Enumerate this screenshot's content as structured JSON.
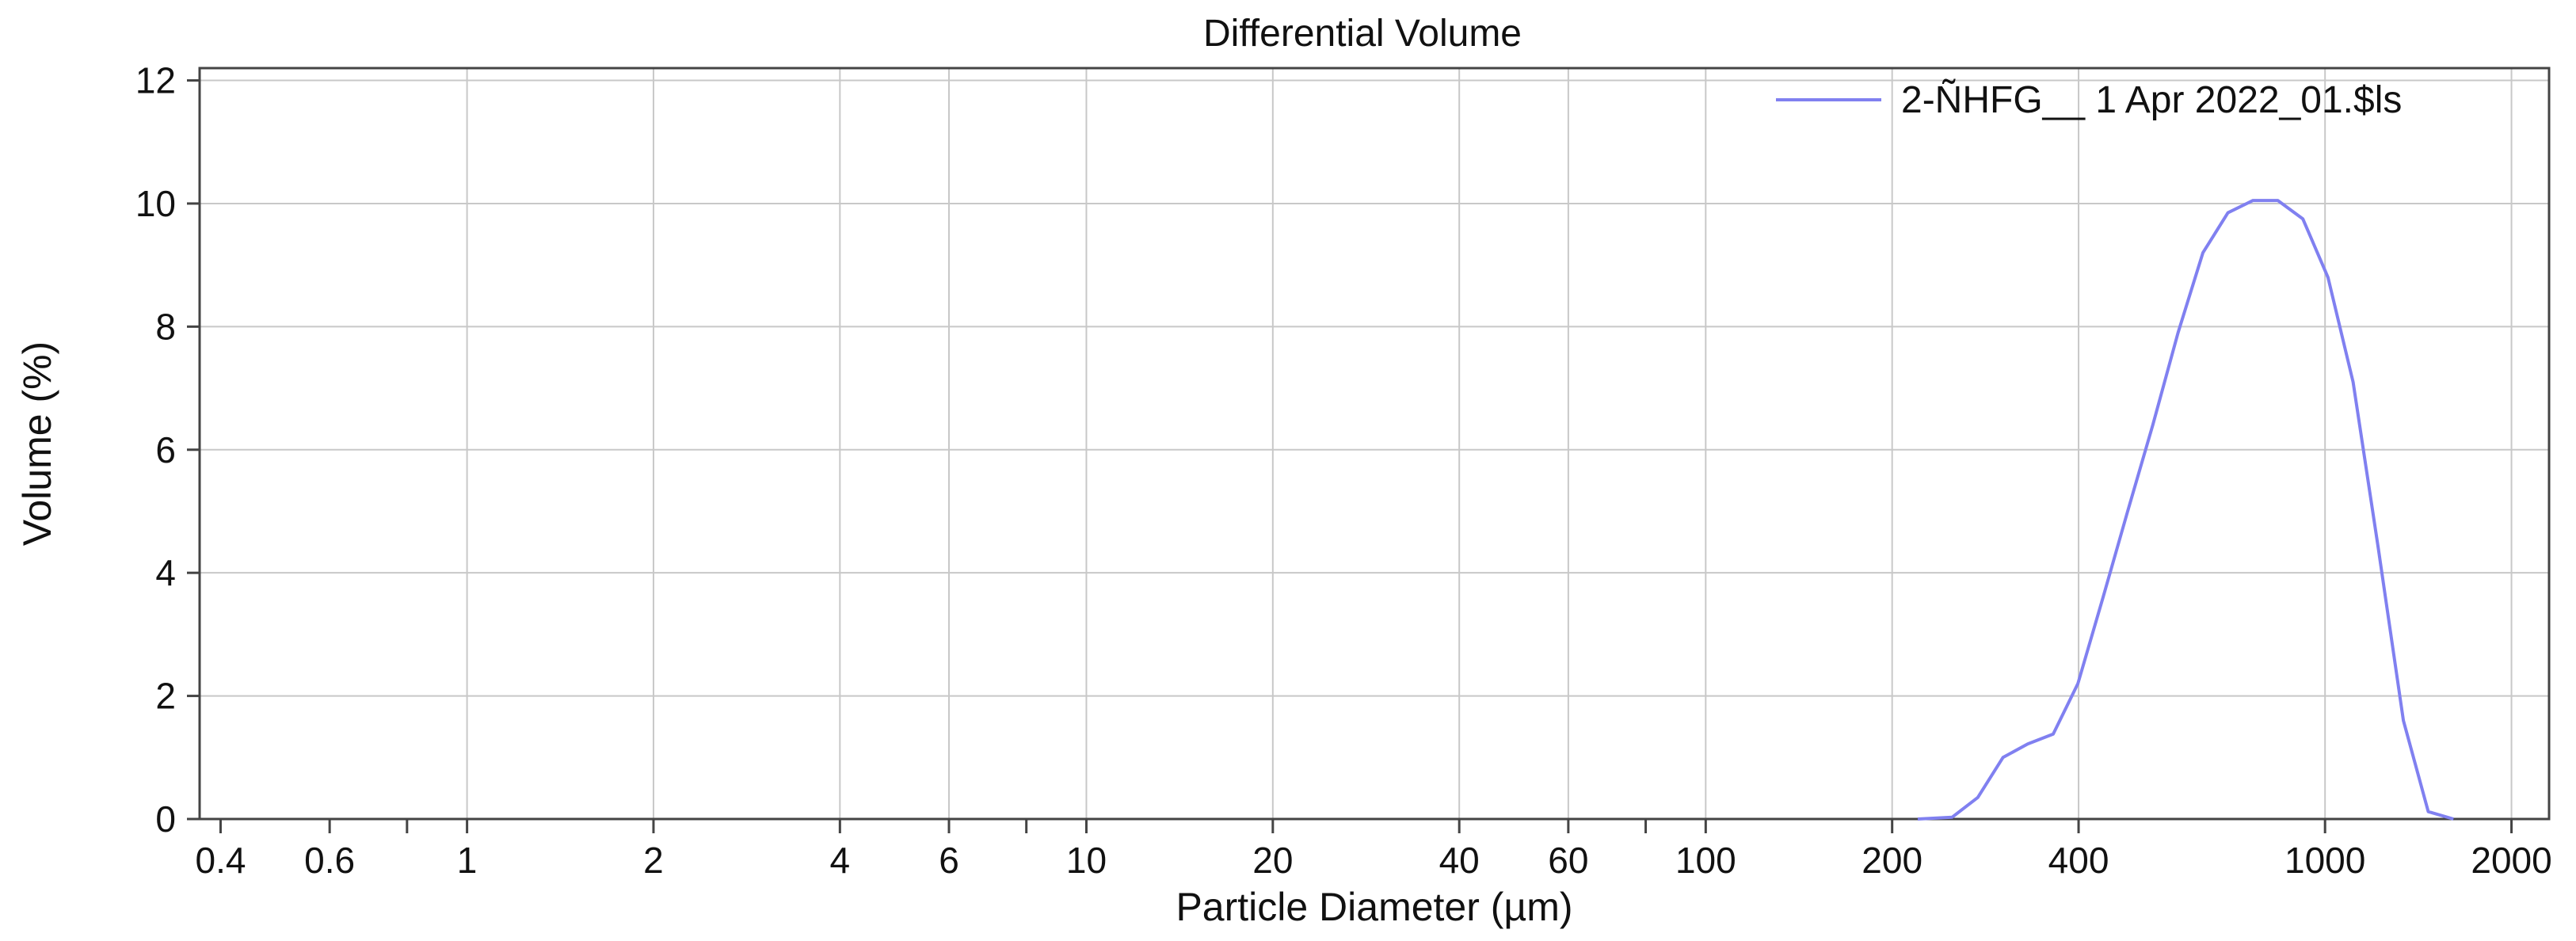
{
  "chart_data": {
    "type": "line",
    "title": "Differential Volume",
    "xlabel": "Particle Diameter (µm)",
    "ylabel": "Volume (%)",
    "xscale": "log",
    "xlim": [
      0.37,
      2300
    ],
    "ylim": [
      0,
      12.2
    ],
    "x_ticks": [
      0.4,
      0.6,
      1,
      2,
      4,
      6,
      10,
      20,
      40,
      60,
      100,
      200,
      400,
      1000,
      2000
    ],
    "x_tick_labels": [
      "0.4",
      "0.6",
      "1",
      "2",
      "4",
      "6",
      "10",
      "20",
      "40",
      "60",
      "100",
      "200",
      "400",
      "1000",
      "2000"
    ],
    "x_minor_ticks": [
      0.8,
      8,
      80
    ],
    "y_ticks": [
      0,
      2,
      4,
      6,
      8,
      10,
      12
    ],
    "y_tick_labels": [
      "0",
      "2",
      "4",
      "6",
      "8",
      "10",
      "12"
    ],
    "grid": true,
    "legend_position": "top-right",
    "series": [
      {
        "name": "2-ÑHFG__ 1 Apr 2022_01.$ls",
        "color": "#8080f0",
        "x": [
          220,
          250,
          275,
          302,
          331,
          364,
          399,
          438,
          480,
          527,
          579,
          635,
          697,
          765,
          839,
          921,
          1011,
          1110,
          1219,
          1338,
          1468,
          1612
        ],
        "y": [
          0,
          0.03,
          0.35,
          1.0,
          1.22,
          1.38,
          2.2,
          3.6,
          5.0,
          6.4,
          7.9,
          9.2,
          9.85,
          10.05,
          10.05,
          9.75,
          8.8,
          7.1,
          4.4,
          1.6,
          0.12,
          0
        ]
      }
    ]
  }
}
